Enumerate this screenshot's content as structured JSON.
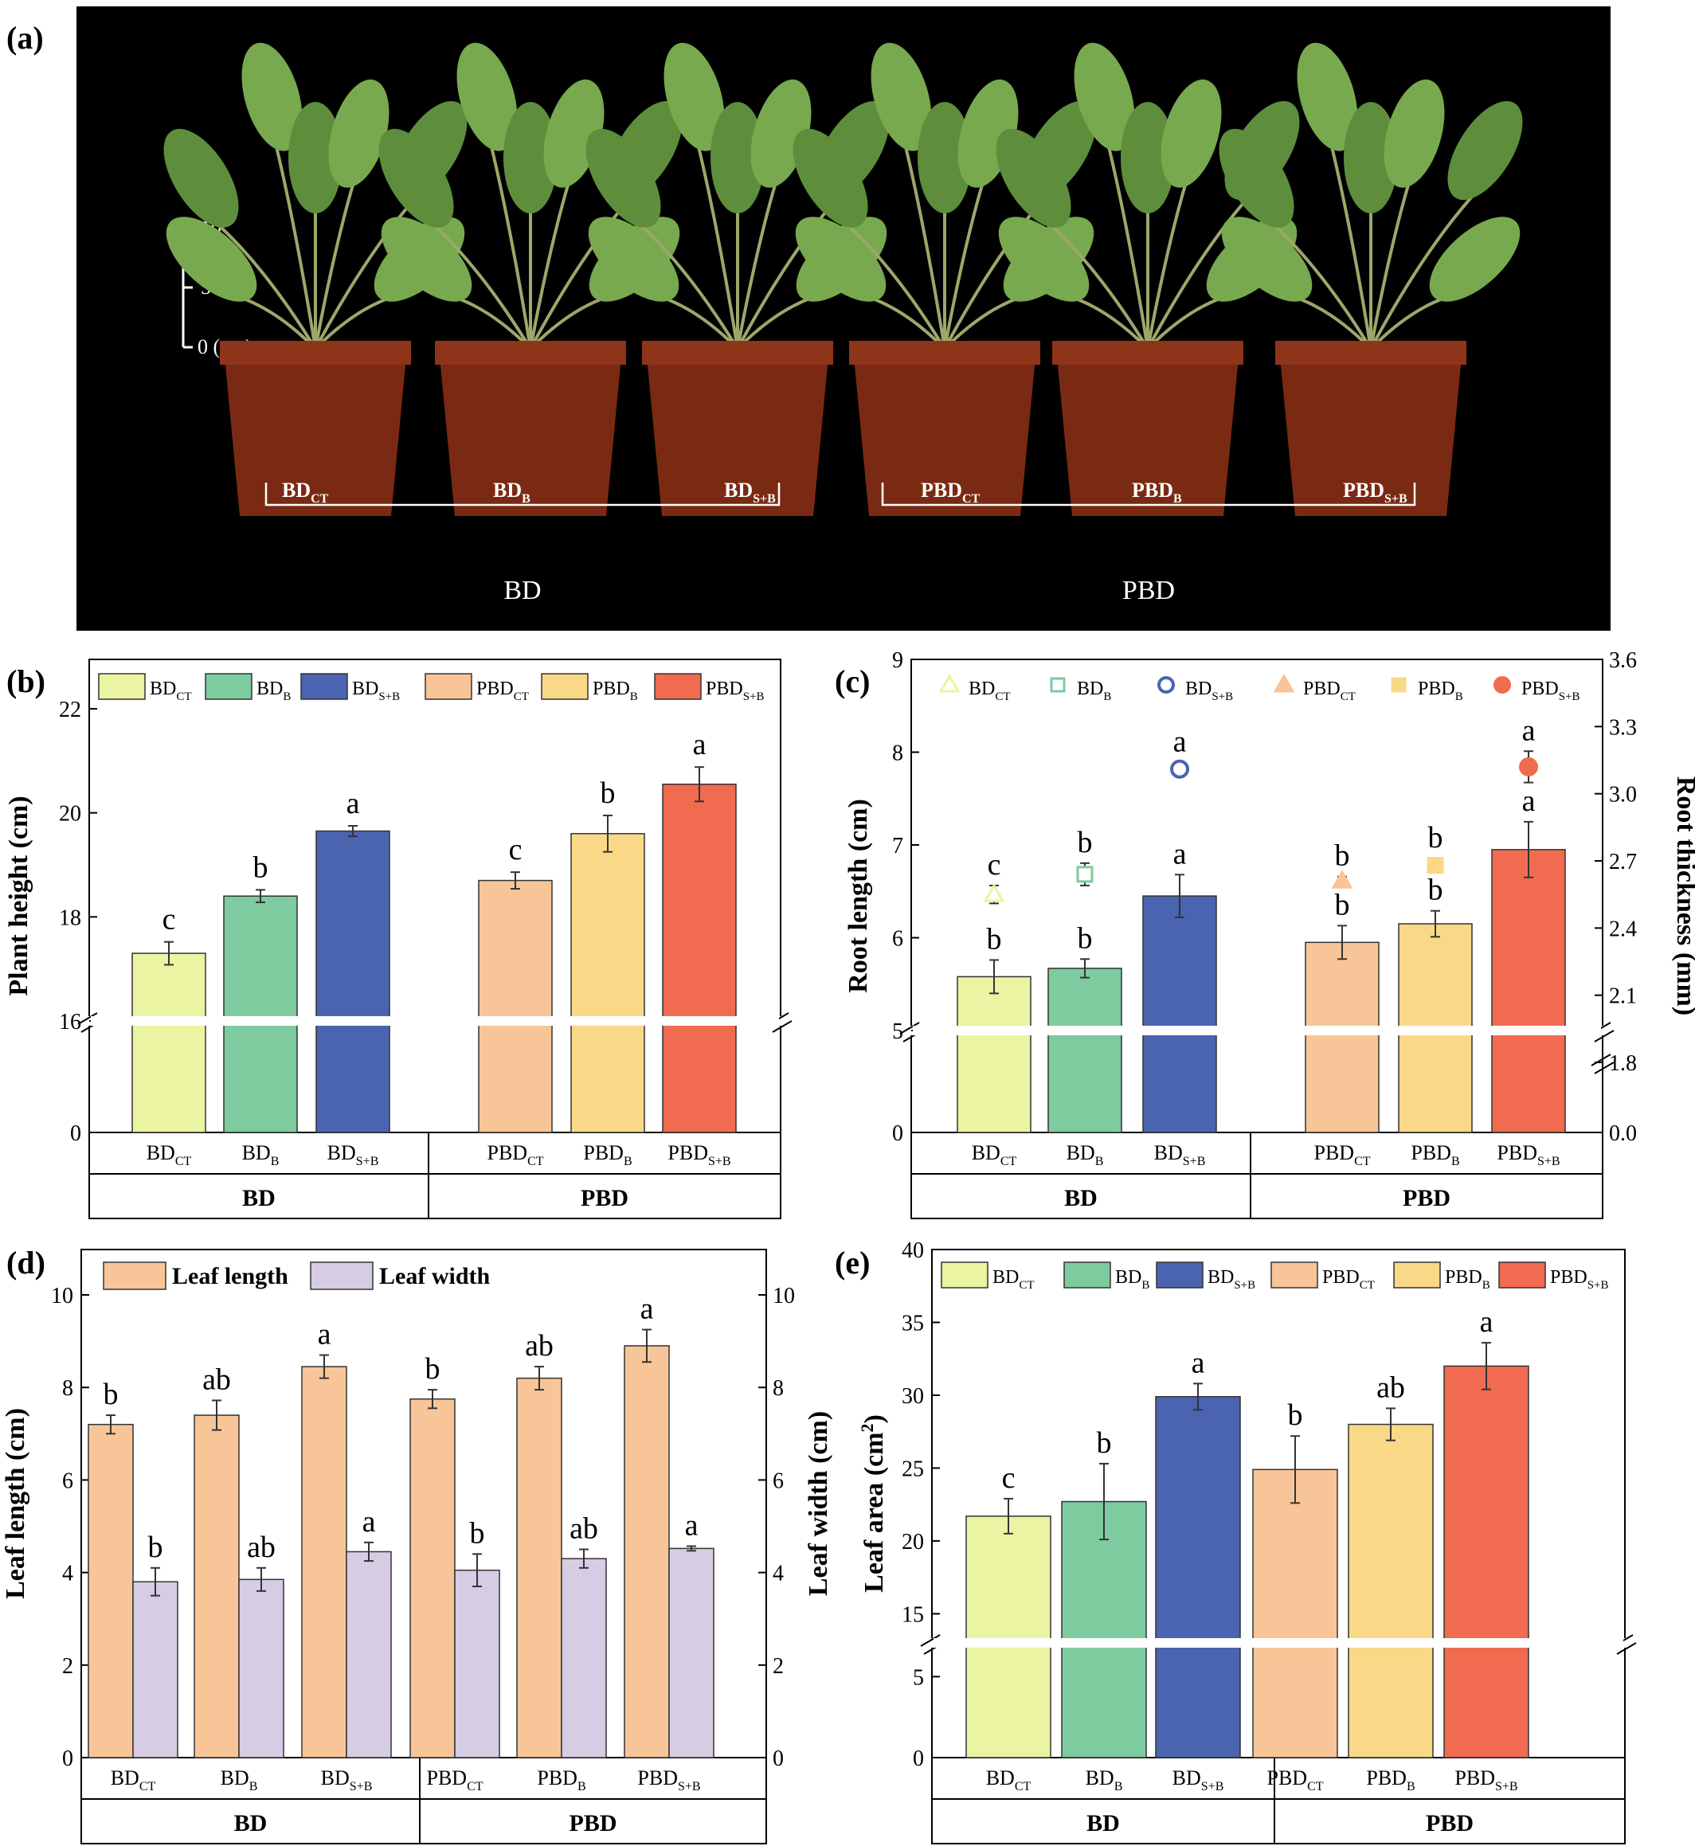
{
  "labels": {
    "a": "(a)",
    "b": "(b)",
    "c": "(c)",
    "d": "(d)",
    "e": "(e)"
  },
  "photo": {
    "scale_ticks": [
      "10",
      "5",
      "0 (cm)"
    ],
    "treatments": [
      {
        "base": "BD",
        "sub": "CT"
      },
      {
        "base": "BD",
        "sub": "B"
      },
      {
        "base": "BD",
        "sub": "S+B"
      },
      {
        "base": "PBD",
        "sub": "CT"
      },
      {
        "base": "PBD",
        "sub": "B"
      },
      {
        "base": "PBD",
        "sub": "S+B"
      }
    ],
    "groups": [
      "BD",
      "PBD"
    ]
  },
  "colors": {
    "BD_CT": "#EAF4A2",
    "BD_B": "#7DCB9E",
    "BD_SB": "#4A64B0",
    "PBD_CT": "#F8C598",
    "PBD_B": "#F9D887",
    "PBD_SB": "#F06B50",
    "leaf_length": "#F8C598",
    "leaf_width": "#D6CCE4"
  },
  "legend_treatments": [
    {
      "base": "BD",
      "sub": "CT",
      "color": "#EAF4A2"
    },
    {
      "base": "BD",
      "sub": "B",
      "color": "#7DCB9E"
    },
    {
      "base": "BD",
      "sub": "S+B",
      "color": "#4A64B0"
    },
    {
      "base": "PBD",
      "sub": "CT",
      "color": "#F8C598"
    },
    {
      "base": "PBD",
      "sub": "B",
      "color": "#F9D887"
    },
    {
      "base": "PBD",
      "sub": "S+B",
      "color": "#F06B50"
    }
  ],
  "chart_data": [
    {
      "id": "b",
      "type": "bar",
      "ylabel": "Plant height (cm)",
      "yticks": [
        "0",
        "16",
        "18",
        "20",
        "22"
      ],
      "values": [
        17.3,
        18.4,
        19.65,
        18.7,
        19.6,
        20.55
      ],
      "errors": [
        0.22,
        0.12,
        0.1,
        0.16,
        0.35,
        0.33
      ],
      "letters": [
        "c",
        "b",
        "a",
        "c",
        "b",
        "a"
      ],
      "axis_break": [
        0,
        16
      ],
      "group_labels": [
        "BD",
        "PBD"
      ]
    },
    {
      "id": "c",
      "type": "bar",
      "ylabel": "Root length (cm)",
      "y2label": "Root thickness (mm)",
      "yticks": [
        "0",
        "5",
        "6",
        "7",
        "8",
        "9"
      ],
      "y2ticks": [
        "0.0",
        "1.8",
        "2.1",
        "2.4",
        "2.7",
        "3.0",
        "3.3",
        "3.6"
      ],
      "values": [
        5.58,
        5.67,
        6.45,
        5.95,
        6.15,
        6.95
      ],
      "errors": [
        0.18,
        0.1,
        0.23,
        0.18,
        0.14,
        0.3
      ],
      "letters": [
        "b",
        "b",
        "a",
        "b",
        "b",
        "a"
      ],
      "thickness": [
        2.55,
        2.64,
        3.11,
        2.61,
        2.68,
        3.12
      ],
      "thickness_errors": [
        0.04,
        0.05,
        0.03,
        0.02,
        0.03,
        0.07
      ],
      "thickness_letters": [
        "c",
        "b",
        "a",
        "b",
        "b",
        "a"
      ],
      "group_labels": [
        "BD",
        "PBD"
      ]
    },
    {
      "id": "d",
      "type": "bar",
      "ylabel": "Leaf length (cm)",
      "y2label": "Leaf width (cm)",
      "yticks": [
        "0",
        "2",
        "4",
        "6",
        "8",
        "10"
      ],
      "y2ticks": [
        "0",
        "2",
        "4",
        "6",
        "8",
        "10"
      ],
      "series": [
        {
          "name": "Leaf length",
          "values": [
            7.2,
            7.4,
            8.45,
            7.75,
            8.2,
            8.9
          ],
          "errors": [
            0.2,
            0.32,
            0.25,
            0.2,
            0.25,
            0.35
          ],
          "letters": [
            "b",
            "ab",
            "a",
            "b",
            "ab",
            "a"
          ]
        },
        {
          "name": "Leaf width",
          "values": [
            3.8,
            3.85,
            4.45,
            4.05,
            4.3,
            4.52
          ],
          "errors": [
            0.3,
            0.25,
            0.2,
            0.35,
            0.2,
            0.05
          ],
          "letters": [
            "b",
            "ab",
            "a",
            "b",
            "ab",
            "a"
          ]
        }
      ],
      "group_labels": [
        "BD",
        "PBD"
      ]
    },
    {
      "id": "e",
      "type": "bar",
      "ylabel": "Leaf area (cm",
      "ylabel_sup": "2",
      "ylabel_end": ")",
      "yticks": [
        "0",
        "5",
        "15",
        "20",
        "25",
        "30",
        "35",
        "40"
      ],
      "values": [
        21.7,
        22.7,
        29.9,
        24.9,
        28.0,
        32.0
      ],
      "errors": [
        1.2,
        2.6,
        0.9,
        2.3,
        1.1,
        1.6
      ],
      "letters": [
        "c",
        "b",
        "a",
        "b",
        "ab",
        "a"
      ],
      "group_labels": [
        "BD",
        "PBD"
      ]
    }
  ]
}
